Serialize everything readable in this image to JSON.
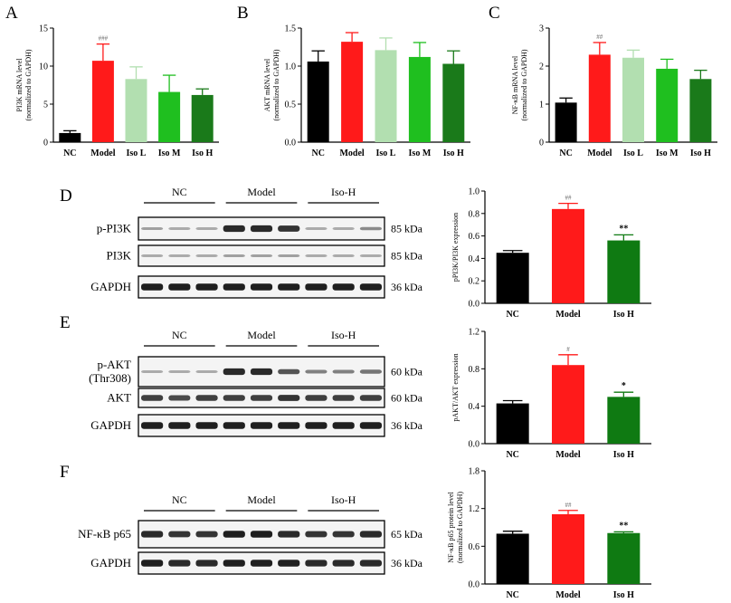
{
  "colors": {
    "NC": "#000000",
    "Model": "#ff1a1a",
    "Iso L": "#b2dfb0",
    "Iso M": "#1fbf1f",
    "Iso H": "#1a7a1a",
    "Iso H dark": "#0f7a12"
  },
  "chart_data": [
    {
      "panel": "A",
      "type": "bar",
      "categories": [
        "NC",
        "Model",
        "Iso L",
        "Iso M",
        "Iso H"
      ],
      "values": [
        1.2,
        10.7,
        8.3,
        6.6,
        6.2
      ],
      "errors": [
        0.3,
        2.2,
        1.6,
        2.2,
        0.8
      ],
      "ylabel": "PI3K mRNA level\n(normalized to GAPDH)",
      "ylim": [
        0,
        15
      ],
      "yticks": [
        0,
        5,
        10,
        15
      ],
      "annotations": [
        "",
        "###",
        "",
        "",
        ""
      ],
      "colors": [
        "NC",
        "Model",
        "Iso L",
        "Iso M",
        "Iso H"
      ]
    },
    {
      "panel": "B",
      "type": "bar",
      "categories": [
        "NC",
        "Model",
        "Iso L",
        "Iso M",
        "Iso H"
      ],
      "values": [
        1.06,
        1.32,
        1.21,
        1.12,
        1.03
      ],
      "errors": [
        0.14,
        0.12,
        0.16,
        0.19,
        0.17
      ],
      "ylabel": "AKT mRNA level\n(normalized to GAPDH)",
      "ylim": [
        0,
        1.5
      ],
      "yticks": [
        0.0,
        0.5,
        1.0,
        1.5
      ],
      "annotations": [
        "",
        "",
        "",
        "",
        ""
      ],
      "colors": [
        "NC",
        "Model",
        "Iso L",
        "Iso M",
        "Iso H"
      ]
    },
    {
      "panel": "C",
      "type": "bar",
      "categories": [
        "NC",
        "Model",
        "Iso L",
        "Iso M",
        "Iso H"
      ],
      "values": [
        1.04,
        2.3,
        2.22,
        1.93,
        1.66
      ],
      "errors": [
        0.12,
        0.32,
        0.2,
        0.25,
        0.23
      ],
      "ylabel": "NF-κB mRNA level\n(normalized to GAPDH)",
      "ylim": [
        0,
        3
      ],
      "yticks": [
        0,
        1,
        2,
        3
      ],
      "annotations": [
        "",
        "##",
        "",
        "",
        ""
      ],
      "colors": [
        "NC",
        "Model",
        "Iso L",
        "Iso M",
        "Iso H"
      ]
    },
    {
      "panel": "D",
      "type": "bar",
      "categories": [
        "NC",
        "Model",
        "Iso H"
      ],
      "values": [
        0.45,
        0.84,
        0.56
      ],
      "errors": [
        0.02,
        0.05,
        0.05
      ],
      "ylabel": "pPI3K/PI3K expression",
      "ylim": [
        0,
        1.0
      ],
      "yticks": [
        0.0,
        0.2,
        0.4,
        0.6,
        0.8,
        1.0
      ],
      "annotations": [
        "",
        "##",
        "**"
      ],
      "colors": [
        "NC",
        "Model",
        "Iso H dark"
      ]
    },
    {
      "panel": "E",
      "type": "bar",
      "categories": [
        "NC",
        "Model",
        "Iso H"
      ],
      "values": [
        0.43,
        0.84,
        0.5
      ],
      "errors": [
        0.03,
        0.11,
        0.05
      ],
      "ylabel": "pAKT/AKT expression",
      "ylim": [
        0,
        1.2
      ],
      "yticks": [
        0.0,
        0.4,
        0.8,
        1.2
      ],
      "annotations": [
        "",
        "#",
        "*"
      ],
      "colors": [
        "NC",
        "Model",
        "Iso H dark"
      ]
    },
    {
      "panel": "F",
      "type": "bar",
      "categories": [
        "NC",
        "Model",
        "Iso H"
      ],
      "values": [
        0.8,
        1.11,
        0.81
      ],
      "errors": [
        0.04,
        0.06,
        0.02
      ],
      "ylabel": "NF-κB p65 protein level\n(normalized to GAPDH)",
      "ylim": [
        0,
        1.8
      ],
      "yticks": [
        0.0,
        0.6,
        1.2,
        1.8
      ],
      "annotations": [
        "",
        "##",
        "**"
      ],
      "colors": [
        "NC",
        "Model",
        "Iso H dark"
      ]
    }
  ],
  "blots": [
    {
      "panel": "D",
      "groups": [
        "NC",
        "Model",
        "Iso-H"
      ],
      "rows": [
        {
          "label": "p-PI3K",
          "kda": "85 kDa",
          "intensity": [
            0.35,
            0.3,
            0.3,
            0.9,
            0.9,
            0.85,
            0.3,
            0.3,
            0.45
          ]
        },
        {
          "label": "PI3K",
          "kda": "85 kDa",
          "intensity": [
            0.3,
            0.3,
            0.3,
            0.35,
            0.35,
            0.35,
            0.3,
            0.3,
            0.3
          ]
        },
        {
          "label": "GAPDH",
          "kda": "36 kDa",
          "intensity": [
            0.95,
            0.95,
            0.95,
            0.95,
            0.95,
            0.95,
            0.95,
            0.95,
            0.95
          ]
        }
      ]
    },
    {
      "panel": "E",
      "groups": [
        "NC",
        "Model",
        "Iso-H"
      ],
      "rows": [
        {
          "label": "p-AKT\n(Thr308)",
          "kda": "60 kDa",
          "intensity": [
            0.3,
            0.3,
            0.3,
            0.9,
            0.9,
            0.7,
            0.5,
            0.5,
            0.55
          ]
        },
        {
          "label": "AKT",
          "kda": "60 kDa",
          "intensity": [
            0.8,
            0.75,
            0.8,
            0.8,
            0.8,
            0.85,
            0.8,
            0.8,
            0.8
          ]
        },
        {
          "label": "GAPDH",
          "kda": "36 kDa",
          "intensity": [
            0.95,
            0.95,
            0.95,
            0.95,
            0.95,
            0.95,
            0.95,
            0.95,
            0.95
          ]
        }
      ]
    },
    {
      "panel": "F",
      "groups": [
        "NC",
        "Model",
        "Iso-H"
      ],
      "rows": [
        {
          "label": "NF-κB p65",
          "kda": "65 kDa",
          "intensity": [
            0.9,
            0.85,
            0.85,
            0.95,
            0.95,
            0.9,
            0.85,
            0.85,
            0.9
          ]
        },
        {
          "label": "GAPDH",
          "kda": "36 kDa",
          "intensity": [
            0.95,
            0.9,
            0.9,
            0.95,
            0.95,
            0.95,
            0.9,
            0.9,
            0.9
          ]
        }
      ]
    }
  ]
}
